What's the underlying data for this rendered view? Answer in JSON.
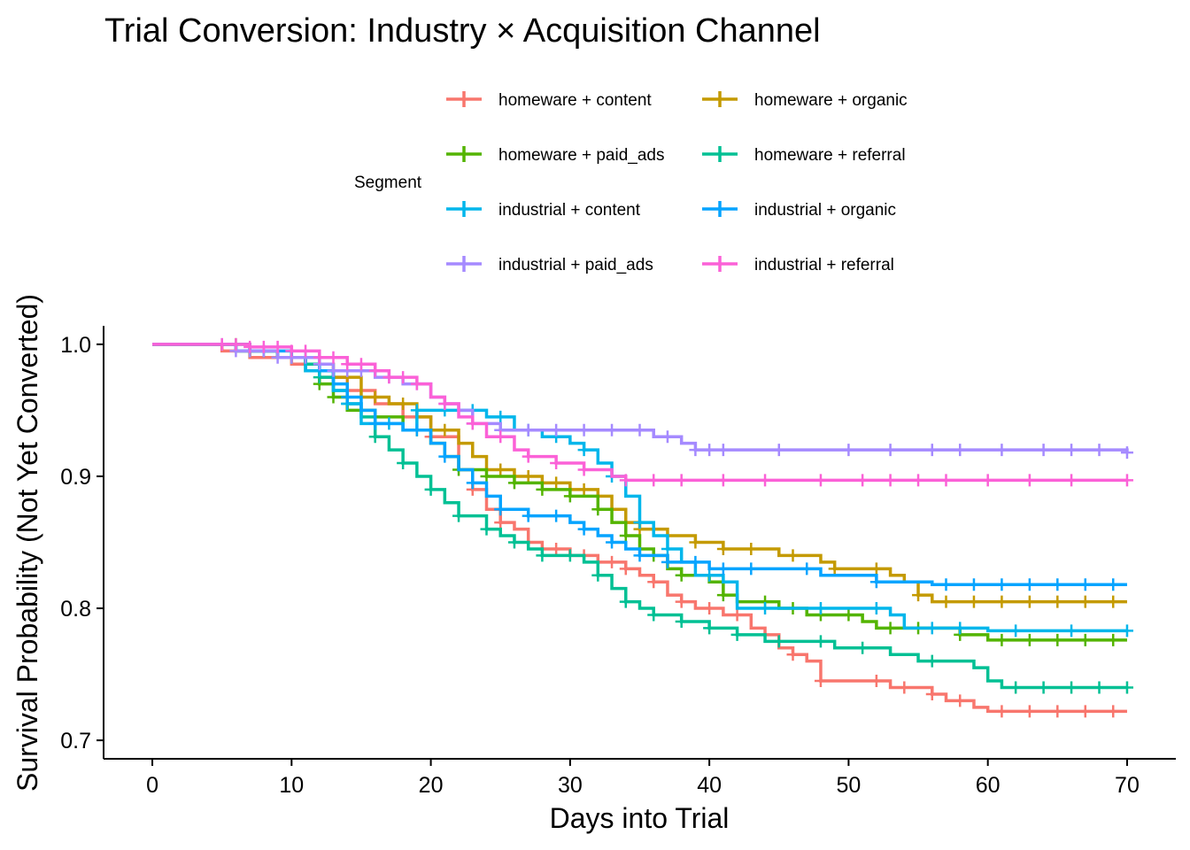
{
  "chart_data": {
    "type": "line",
    "title": "Trial Conversion: Industry × Acquisition Channel",
    "xlabel": "Days into Trial",
    "ylabel": "Survival Probability (Not Yet Converted)",
    "xlim": [
      -3.5,
      73.5
    ],
    "ylim": [
      0.686,
      1.014
    ],
    "x_ticks": [
      0,
      10,
      20,
      30,
      40,
      50,
      60,
      70
    ],
    "x_tick_labels": [
      "0",
      "10",
      "20",
      "30",
      "40",
      "50",
      "60",
      "70"
    ],
    "y_ticks": [
      0.7,
      0.8,
      0.9,
      1.0
    ],
    "y_tick_labels": [
      "0.7",
      "0.8",
      "0.9",
      "1.0"
    ],
    "grid": false,
    "legend": {
      "title": "Segment",
      "position": "top"
    },
    "series": [
      {
        "name": "homeware + content",
        "color": "#F8766D",
        "points": [
          [
            0,
            1
          ],
          [
            5,
            0.995
          ],
          [
            7,
            0.99
          ],
          [
            10,
            0.985
          ],
          [
            12,
            0.975
          ],
          [
            14,
            0.965
          ],
          [
            16,
            0.955
          ],
          [
            18,
            0.945
          ],
          [
            20,
            0.93
          ],
          [
            22,
            0.905
          ],
          [
            23,
            0.89
          ],
          [
            24,
            0.875
          ],
          [
            25,
            0.865
          ],
          [
            26,
            0.86
          ],
          [
            27,
            0.85
          ],
          [
            28,
            0.845
          ],
          [
            30,
            0.84
          ],
          [
            32,
            0.835
          ],
          [
            34,
            0.83
          ],
          [
            35,
            0.825
          ],
          [
            36,
            0.82
          ],
          [
            37,
            0.81
          ],
          [
            38,
            0.805
          ],
          [
            39,
            0.8
          ],
          [
            41,
            0.795
          ],
          [
            43,
            0.785
          ],
          [
            44,
            0.78
          ],
          [
            45,
            0.77
          ],
          [
            46,
            0.765
          ],
          [
            47,
            0.76
          ],
          [
            48,
            0.745
          ],
          [
            53,
            0.74
          ],
          [
            56,
            0.735
          ],
          [
            57,
            0.73
          ],
          [
            59,
            0.725
          ],
          [
            60,
            0.722
          ],
          [
            70,
            0.722
          ]
        ],
        "censored_x": [
          20,
          23,
          25,
          27,
          29,
          31,
          33,
          34,
          36,
          38,
          40,
          42,
          46,
          48,
          52,
          54,
          56,
          58,
          61,
          63,
          65,
          67,
          69
        ]
      },
      {
        "name": "homeware + organic",
        "color": "#C49A00",
        "points": [
          [
            0,
            1
          ],
          [
            6,
            0.995
          ],
          [
            9,
            0.99
          ],
          [
            11,
            0.985
          ],
          [
            13,
            0.975
          ],
          [
            15,
            0.96
          ],
          [
            17,
            0.955
          ],
          [
            19,
            0.945
          ],
          [
            20,
            0.935
          ],
          [
            22,
            0.925
          ],
          [
            23,
            0.915
          ],
          [
            24,
            0.905
          ],
          [
            26,
            0.9
          ],
          [
            28,
            0.895
          ],
          [
            30,
            0.89
          ],
          [
            32,
            0.885
          ],
          [
            33,
            0.875
          ],
          [
            34,
            0.865
          ],
          [
            35,
            0.86
          ],
          [
            37,
            0.855
          ],
          [
            39,
            0.85
          ],
          [
            41,
            0.845
          ],
          [
            45,
            0.84
          ],
          [
            48,
            0.835
          ],
          [
            49,
            0.83
          ],
          [
            53,
            0.825
          ],
          [
            54,
            0.82
          ],
          [
            55,
            0.81
          ],
          [
            56,
            0.805
          ],
          [
            70,
            0.805
          ]
        ],
        "censored_x": [
          7,
          10,
          14,
          16,
          18,
          21,
          25,
          27,
          29,
          31,
          33,
          35,
          37,
          39,
          41,
          43,
          46,
          49,
          52,
          55,
          57,
          59,
          61,
          63,
          65,
          67,
          69
        ]
      },
      {
        "name": "homeware + paid_ads",
        "color": "#53B400",
        "points": [
          [
            0,
            1
          ],
          [
            7,
            0.995
          ],
          [
            9,
            0.99
          ],
          [
            11,
            0.98
          ],
          [
            12,
            0.97
          ],
          [
            13,
            0.96
          ],
          [
            14,
            0.95
          ],
          [
            16,
            0.945
          ],
          [
            18,
            0.935
          ],
          [
            20,
            0.925
          ],
          [
            21,
            0.915
          ],
          [
            22,
            0.905
          ],
          [
            24,
            0.9
          ],
          [
            26,
            0.895
          ],
          [
            28,
            0.89
          ],
          [
            30,
            0.885
          ],
          [
            32,
            0.875
          ],
          [
            33,
            0.865
          ],
          [
            34,
            0.855
          ],
          [
            35,
            0.845
          ],
          [
            36,
            0.84
          ],
          [
            37,
            0.83
          ],
          [
            38,
            0.825
          ],
          [
            40,
            0.82
          ],
          [
            41,
            0.81
          ],
          [
            42,
            0.805
          ],
          [
            45,
            0.8
          ],
          [
            47,
            0.795
          ],
          [
            51,
            0.79
          ],
          [
            52,
            0.785
          ],
          [
            58,
            0.78
          ],
          [
            60,
            0.776
          ],
          [
            70,
            0.776
          ]
        ],
        "censored_x": [
          6,
          12,
          13,
          16,
          19,
          22,
          24,
          26,
          28,
          30,
          32,
          34,
          36,
          38,
          41,
          44,
          46,
          48,
          50,
          53,
          55,
          58,
          61,
          63,
          65,
          67,
          69
        ]
      },
      {
        "name": "homeware + referral",
        "color": "#00C094",
        "points": [
          [
            0,
            1
          ],
          [
            6,
            0.995
          ],
          [
            9,
            0.99
          ],
          [
            11,
            0.985
          ],
          [
            12,
            0.975
          ],
          [
            13,
            0.965
          ],
          [
            14,
            0.955
          ],
          [
            15,
            0.945
          ],
          [
            16,
            0.93
          ],
          [
            17,
            0.92
          ],
          [
            18,
            0.91
          ],
          [
            19,
            0.9
          ],
          [
            20,
            0.89
          ],
          [
            21,
            0.88
          ],
          [
            22,
            0.87
          ],
          [
            24,
            0.86
          ],
          [
            25,
            0.855
          ],
          [
            26,
            0.85
          ],
          [
            27,
            0.845
          ],
          [
            28,
            0.84
          ],
          [
            31,
            0.835
          ],
          [
            32,
            0.825
          ],
          [
            33,
            0.815
          ],
          [
            34,
            0.805
          ],
          [
            35,
            0.8
          ],
          [
            36,
            0.795
          ],
          [
            38,
            0.79
          ],
          [
            40,
            0.785
          ],
          [
            42,
            0.78
          ],
          [
            44,
            0.775
          ],
          [
            49,
            0.77
          ],
          [
            53,
            0.765
          ],
          [
            55,
            0.76
          ],
          [
            59,
            0.755
          ],
          [
            60,
            0.745
          ],
          [
            61,
            0.74
          ],
          [
            70,
            0.74
          ]
        ],
        "censored_x": [
          8,
          12,
          14,
          16,
          18,
          20,
          22,
          24,
          26,
          28,
          30,
          32,
          34,
          36,
          38,
          40,
          42,
          45,
          48,
          51,
          56,
          62,
          64,
          66,
          68,
          70
        ]
      },
      {
        "name": "industrial + content",
        "color": "#00B6EB",
        "points": [
          [
            0,
            1
          ],
          [
            6,
            0.995
          ],
          [
            9,
            0.99
          ],
          [
            11,
            0.98
          ],
          [
            13,
            0.965
          ],
          [
            14,
            0.955
          ],
          [
            15,
            0.94
          ],
          [
            18,
            0.935
          ],
          [
            19,
            0.95
          ],
          [
            24,
            0.945
          ],
          [
            26,
            0.935
          ],
          [
            28,
            0.93
          ],
          [
            30,
            0.925
          ],
          [
            31,
            0.92
          ],
          [
            32,
            0.91
          ],
          [
            33,
            0.9
          ],
          [
            34,
            0.885
          ],
          [
            35,
            0.865
          ],
          [
            36,
            0.855
          ],
          [
            37,
            0.845
          ],
          [
            38,
            0.835
          ],
          [
            39,
            0.825
          ],
          [
            41,
            0.82
          ],
          [
            42,
            0.8
          ],
          [
            53,
            0.795
          ],
          [
            54,
            0.785
          ],
          [
            60,
            0.783
          ],
          [
            70,
            0.783
          ]
        ],
        "censored_x": [
          7,
          10,
          12,
          14,
          17,
          19,
          21,
          23,
          25,
          27,
          29,
          31,
          33,
          35,
          37,
          40,
          44,
          48,
          52,
          56,
          58,
          62,
          66,
          70
        ]
      },
      {
        "name": "industrial + organic",
        "color": "#06A4FF",
        "points": [
          [
            0,
            1
          ],
          [
            7,
            0.995
          ],
          [
            10,
            0.99
          ],
          [
            12,
            0.98
          ],
          [
            13,
            0.97
          ],
          [
            14,
            0.96
          ],
          [
            15,
            0.95
          ],
          [
            16,
            0.94
          ],
          [
            18,
            0.935
          ],
          [
            20,
            0.925
          ],
          [
            21,
            0.915
          ],
          [
            22,
            0.905
          ],
          [
            23,
            0.895
          ],
          [
            24,
            0.885
          ],
          [
            25,
            0.875
          ],
          [
            27,
            0.87
          ],
          [
            30,
            0.865
          ],
          [
            31,
            0.86
          ],
          [
            32,
            0.855
          ],
          [
            33,
            0.85
          ],
          [
            34,
            0.845
          ],
          [
            35,
            0.84
          ],
          [
            37,
            0.835
          ],
          [
            40,
            0.83
          ],
          [
            48,
            0.825
          ],
          [
            52,
            0.82
          ],
          [
            56,
            0.818
          ],
          [
            70,
            0.818
          ]
        ],
        "censored_x": [
          8,
          11,
          14,
          16,
          19,
          21,
          23,
          25,
          27,
          29,
          31,
          33,
          35,
          37,
          39,
          41,
          43,
          47,
          52,
          57,
          59,
          61,
          63,
          65,
          67,
          69
        ]
      },
      {
        "name": "industrial + paid_ads",
        "color": "#A58AFF",
        "points": [
          [
            0,
            1
          ],
          [
            6,
            0.995
          ],
          [
            9,
            0.99
          ],
          [
            12,
            0.985
          ],
          [
            13,
            0.98
          ],
          [
            16,
            0.975
          ],
          [
            18,
            0.97
          ],
          [
            20,
            0.96
          ],
          [
            21,
            0.955
          ],
          [
            22,
            0.95
          ],
          [
            23,
            0.94
          ],
          [
            25,
            0.935
          ],
          [
            36,
            0.93
          ],
          [
            38,
            0.925
          ],
          [
            39,
            0.92
          ],
          [
            70,
            0.918
          ]
        ],
        "censored_x": [
          5,
          6,
          7,
          8,
          9,
          10,
          11,
          12,
          13,
          14,
          15,
          17,
          19,
          21,
          23,
          25,
          27,
          29,
          31,
          33,
          35,
          37,
          39,
          40,
          41,
          45,
          50,
          53,
          56,
          58,
          61,
          64,
          66,
          68,
          70
        ]
      },
      {
        "name": "industrial + referral",
        "color": "#FB61D7",
        "points": [
          [
            0,
            1
          ],
          [
            7,
            0.998
          ],
          [
            10,
            0.995
          ],
          [
            12,
            0.99
          ],
          [
            14,
            0.985
          ],
          [
            16,
            0.98
          ],
          [
            17,
            0.975
          ],
          [
            19,
            0.97
          ],
          [
            20,
            0.96
          ],
          [
            21,
            0.955
          ],
          [
            22,
            0.945
          ],
          [
            23,
            0.94
          ],
          [
            24,
            0.93
          ],
          [
            26,
            0.92
          ],
          [
            27,
            0.915
          ],
          [
            29,
            0.91
          ],
          [
            31,
            0.905
          ],
          [
            33,
            0.9
          ],
          [
            34,
            0.897
          ],
          [
            70,
            0.897
          ]
        ],
        "censored_x": [
          5,
          6,
          7,
          8,
          9,
          10,
          11,
          12,
          13,
          14,
          15,
          16,
          17,
          18,
          19,
          21,
          23,
          25,
          27,
          29,
          31,
          34,
          36,
          38,
          41,
          44,
          48,
          51,
          53,
          55,
          57,
          60,
          63,
          66,
          70
        ]
      }
    ]
  }
}
